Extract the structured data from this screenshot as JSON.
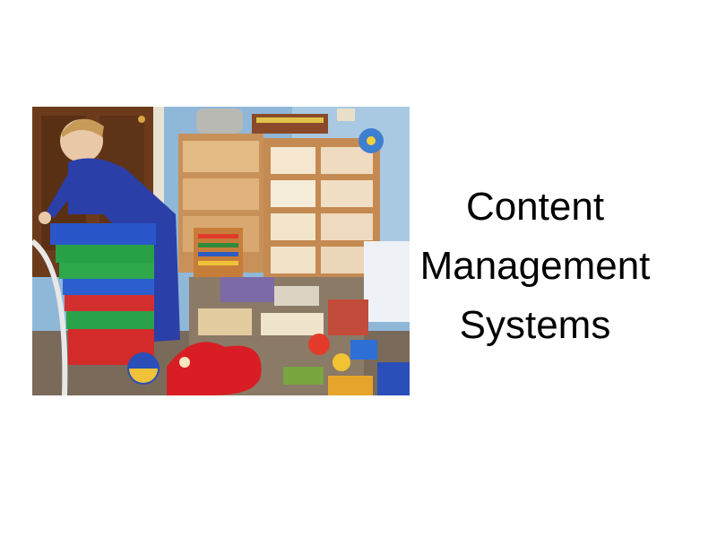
{
  "slide": {
    "title_lines": [
      "Content",
      "Management",
      "Systems"
    ],
    "photo_subject": "toddler climbing into stacked toy bins in a messy playroom"
  }
}
